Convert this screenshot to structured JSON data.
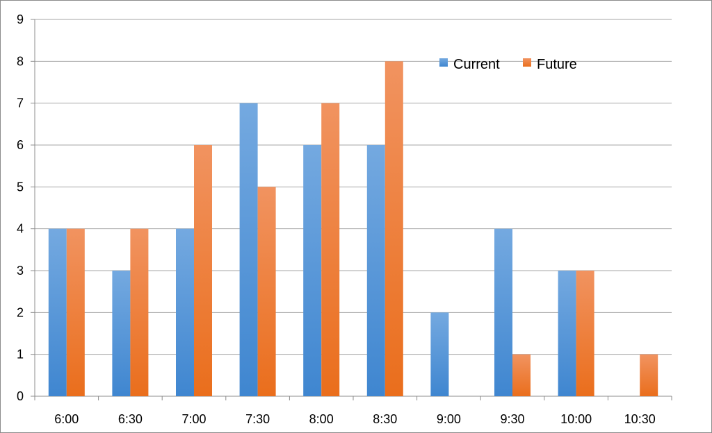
{
  "chart_data": {
    "type": "bar",
    "title": "",
    "xlabel": "",
    "ylabel": "",
    "categories": [
      "6:00",
      "6:30",
      "7:00",
      "7:30",
      "8:00",
      "8:30",
      "9:00",
      "9:30",
      "10:00",
      "10:30"
    ],
    "series": [
      {
        "name": "Current",
        "color": "#4a90d9",
        "values": [
          4,
          3,
          4,
          7,
          6,
          6,
          2,
          4,
          3,
          0
        ]
      },
      {
        "name": "Future",
        "color": "#f07a2a",
        "values": [
          4,
          4,
          6,
          5,
          7,
          8,
          0,
          1,
          3,
          1
        ]
      }
    ],
    "ylim": [
      0,
      9
    ],
    "yticks": [
      0,
      1,
      2,
      3,
      4,
      5,
      6,
      7,
      8,
      9
    ],
    "grid": true,
    "legend_position": "top-right"
  }
}
